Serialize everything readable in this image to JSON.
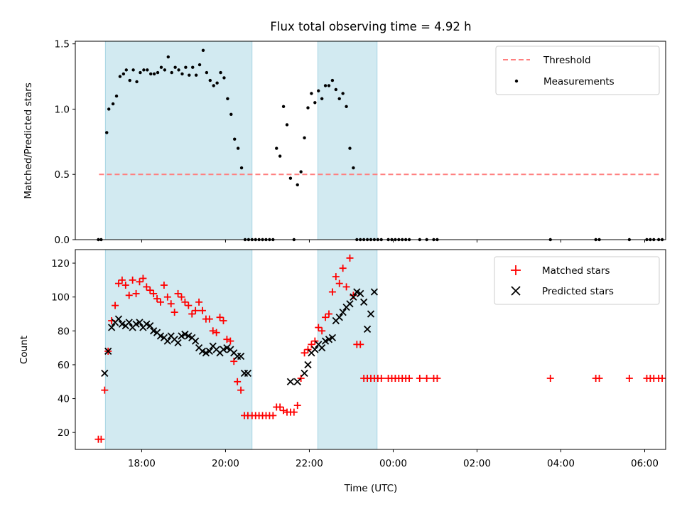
{
  "chart_data": [
    {
      "type": "scatter",
      "title": "Flux total observing time = 4.92 h",
      "xlabel": "",
      "ylabel": "Matched/Predicted stars",
      "ylim": [
        0,
        1.52
      ],
      "yticks": [
        0.0,
        0.5,
        1.0,
        1.5
      ],
      "ytick_labels": [
        "0.0",
        "0.5",
        "1.0",
        "1.5"
      ],
      "xlim": [
        "16:25",
        "30:30"
      ],
      "shaded_intervals": [
        [
          "17:08",
          "20:38"
        ],
        [
          "22:12",
          "23:37"
        ]
      ],
      "shade_color": "#add8e6",
      "legend_position": "upper right",
      "series": [
        {
          "name": "Threshold",
          "style": "dashed-line",
          "color": "#ff7f7f",
          "x": [
            "16:59",
            "30:23"
          ],
          "y": [
            0.5,
            0.5
          ]
        },
        {
          "name": "Measurements",
          "style": "dot",
          "color": "#000000",
          "x": [
            "16:58",
            "17:02",
            "17:10",
            "17:13",
            "17:19",
            "17:24",
            "17:29",
            "17:34",
            "17:38",
            "17:43",
            "17:48",
            "17:53",
            "17:58",
            "18:03",
            "18:08",
            "18:13",
            "18:18",
            "18:23",
            "18:28",
            "18:33",
            "18:38",
            "18:43",
            "18:48",
            "18:53",
            "18:58",
            "19:03",
            "19:08",
            "19:13",
            "19:18",
            "19:23",
            "19:28",
            "19:33",
            "19:38",
            "19:43",
            "19:48",
            "19:53",
            "19:58",
            "20:03",
            "20:08",
            "20:13",
            "20:18",
            "20:23",
            "20:28",
            "20:33",
            "20:38",
            "20:43",
            "20:48",
            "20:53",
            "20:58",
            "21:03",
            "21:08",
            "21:13",
            "21:18",
            "21:23",
            "21:28",
            "21:33",
            "21:38",
            "21:43",
            "21:48",
            "21:53",
            "21:58",
            "22:03",
            "22:08",
            "22:13",
            "22:18",
            "22:23",
            "22:28",
            "22:33",
            "22:38",
            "22:43",
            "22:48",
            "22:53",
            "22:58",
            "23:03",
            "23:08",
            "23:13",
            "23:18",
            "23:23",
            "23:28",
            "23:33",
            "23:38",
            "23:43",
            "23:53",
            "23:58",
            "24:03",
            "24:08",
            "24:13",
            "24:18",
            "24:23",
            "24:38",
            "24:48",
            "24:58",
            "25:03",
            "27:45",
            "28:50",
            "28:55",
            "29:38",
            "30:03",
            "30:08",
            "30:13",
            "30:20",
            "30:25"
          ],
          "y": [
            0.0,
            0.0,
            0.82,
            1.0,
            1.04,
            1.1,
            1.25,
            1.27,
            1.3,
            1.22,
            1.3,
            1.21,
            1.28,
            1.3,
            1.3,
            1.27,
            1.27,
            1.28,
            1.32,
            1.3,
            1.4,
            1.28,
            1.32,
            1.3,
            1.27,
            1.32,
            1.26,
            1.32,
            1.26,
            1.34,
            1.45,
            1.28,
            1.22,
            1.18,
            1.2,
            1.28,
            1.24,
            1.08,
            0.96,
            0.77,
            0.7,
            0.55,
            0.0,
            0.0,
            0.0,
            0.0,
            0.0,
            0.0,
            0.0,
            0.0,
            0.0,
            0.7,
            0.64,
            1.02,
            0.88,
            0.47,
            0.0,
            0.42,
            0.52,
            0.78,
            1.01,
            1.12,
            1.05,
            1.14,
            1.08,
            1.18,
            1.18,
            1.22,
            1.15,
            1.08,
            1.12,
            1.02,
            0.7,
            0.55,
            0.0,
            0.0,
            0.0,
            0.0,
            0.0,
            0.0,
            0.0,
            0.0,
            0.0,
            0.0,
            0.0,
            0.0,
            0.0,
            0.0,
            0.0,
            0.0,
            0.0,
            0.0,
            0.0,
            0.0,
            0.0,
            0.0,
            0.0,
            0.0,
            0.0,
            0.0,
            0.0,
            0.0
          ]
        }
      ]
    },
    {
      "type": "scatter",
      "title": "",
      "xlabel": "Time (UTC)",
      "ylabel": "Count",
      "ylim": [
        10,
        128
      ],
      "yticks": [
        20,
        40,
        60,
        80,
        100,
        120
      ],
      "ytick_labels": [
        "20",
        "40",
        "60",
        "80",
        "100",
        "120"
      ],
      "xlim": [
        "16:25",
        "30:30"
      ],
      "xtick_values": [
        "18:00",
        "20:00",
        "22:00",
        "24:00",
        "26:00",
        "28:00",
        "30:00"
      ],
      "xtick_labels": [
        "18:00",
        "20:00",
        "22:00",
        "00:00",
        "02:00",
        "04:00",
        "06:00"
      ],
      "shaded_intervals": [
        [
          "17:08",
          "20:38"
        ],
        [
          "22:12",
          "23:37"
        ]
      ],
      "shade_color": "#add8e6",
      "legend_position": "upper right",
      "series": [
        {
          "name": "Matched stars",
          "style": "plus",
          "color": "#ff0000",
          "x": [
            "16:58",
            "17:02",
            "17:07",
            "17:12",
            "17:17",
            "17:22",
            "17:27",
            "17:32",
            "17:37",
            "17:42",
            "17:47",
            "17:52",
            "17:57",
            "18:02",
            "18:07",
            "18:12",
            "18:17",
            "18:22",
            "18:27",
            "18:32",
            "18:37",
            "18:42",
            "18:47",
            "18:52",
            "18:57",
            "19:02",
            "19:07",
            "19:12",
            "19:17",
            "19:22",
            "19:27",
            "19:32",
            "19:37",
            "19:42",
            "19:47",
            "19:52",
            "19:57",
            "20:02",
            "20:07",
            "20:12",
            "20:17",
            "20:22",
            "20:27",
            "20:32",
            "20:38",
            "20:43",
            "20:48",
            "20:53",
            "20:58",
            "21:03",
            "21:08",
            "21:13",
            "21:18",
            "21:23",
            "21:28",
            "21:33",
            "21:38",
            "21:43",
            "21:48",
            "21:53",
            "21:58",
            "22:03",
            "22:08",
            "22:13",
            "22:18",
            "22:23",
            "22:28",
            "22:33",
            "22:38",
            "22:43",
            "22:48",
            "22:53",
            "22:58",
            "23:03",
            "23:08",
            "23:13",
            "23:18",
            "23:23",
            "23:28",
            "23:33",
            "23:38",
            "23:43",
            "23:53",
            "23:58",
            "24:03",
            "24:08",
            "24:13",
            "24:18",
            "24:23",
            "24:38",
            "24:48",
            "24:58",
            "25:03",
            "27:45",
            "28:50",
            "28:55",
            "29:38",
            "30:03",
            "30:08",
            "30:13",
            "30:20",
            "30:25"
          ],
          "y": [
            16,
            16,
            45,
            68,
            86,
            95,
            108,
            110,
            107,
            101,
            110,
            102,
            109,
            111,
            106,
            104,
            102,
            99,
            97,
            107,
            100,
            96,
            91,
            102,
            100,
            97,
            95,
            90,
            92,
            97,
            92,
            87,
            87,
            80,
            79,
            88,
            86,
            75,
            74,
            62,
            50,
            45,
            30,
            30,
            30,
            30,
            30,
            30,
            30,
            30,
            30,
            35,
            35,
            33,
            32,
            32,
            32,
            36,
            52,
            67,
            69,
            72,
            74,
            82,
            80,
            88,
            90,
            103,
            112,
            108,
            117,
            106,
            123,
            101,
            72,
            72,
            52,
            52,
            52,
            52,
            52,
            52,
            52,
            52,
            52,
            52,
            52,
            52,
            52,
            52,
            52,
            52,
            52,
            52,
            52,
            52,
            52,
            52,
            52,
            52,
            52,
            52
          ]
        },
        {
          "name": "Predicted stars",
          "style": "x",
          "color": "#000000",
          "x": [
            "17:07",
            "17:12",
            "17:17",
            "17:22",
            "17:27",
            "17:32",
            "17:37",
            "17:42",
            "17:47",
            "17:52",
            "17:57",
            "18:02",
            "18:07",
            "18:12",
            "18:17",
            "18:22",
            "18:27",
            "18:32",
            "18:37",
            "18:42",
            "18:47",
            "18:52",
            "18:57",
            "19:02",
            "19:07",
            "19:12",
            "19:17",
            "19:22",
            "19:27",
            "19:32",
            "19:37",
            "19:42",
            "19:47",
            "19:52",
            "19:57",
            "20:02",
            "20:07",
            "20:12",
            "20:17",
            "20:22",
            "20:27",
            "20:32",
            "21:33",
            "21:43",
            "21:53",
            "21:58",
            "22:03",
            "22:08",
            "22:13",
            "22:18",
            "22:23",
            "22:28",
            "22:33",
            "22:38",
            "22:43",
            "22:48",
            "22:53",
            "22:58",
            "23:03",
            "23:08",
            "23:13",
            "23:18",
            "23:23",
            "23:28",
            "23:33"
          ],
          "y": [
            55,
            68,
            82,
            85,
            87,
            84,
            83,
            85,
            82,
            84,
            85,
            82,
            84,
            83,
            80,
            79,
            77,
            76,
            74,
            77,
            75,
            73,
            77,
            78,
            77,
            76,
            74,
            70,
            68,
            67,
            68,
            71,
            69,
            67,
            69,
            70,
            69,
            67,
            65,
            65,
            55,
            55,
            50,
            50,
            55,
            60,
            67,
            69,
            72,
            70,
            74,
            75,
            76,
            86,
            88,
            91,
            94,
            96,
            100,
            103,
            102,
            97,
            81,
            90,
            103
          ]
        }
      ]
    }
  ]
}
